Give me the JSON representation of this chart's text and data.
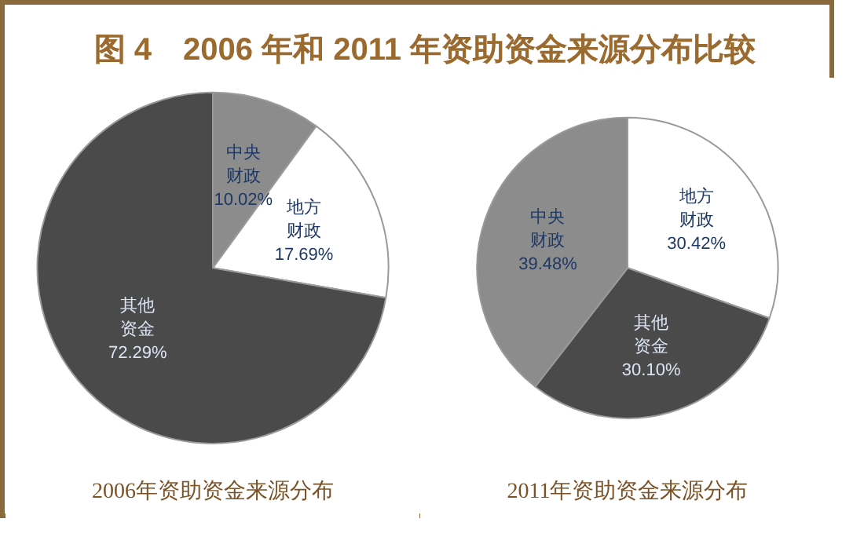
{
  "chart_data": [
    {
      "type": "pie",
      "title": "图 4　2006 年和 2011 年资助资金来源分布比较",
      "subtitle": "2006年资助资金来源分布",
      "categories": [
        "中央财政",
        "地方财政",
        "其他资金"
      ],
      "values": [
        10.02,
        17.69,
        72.29
      ],
      "colors": [
        "#8c8c8c",
        "#ffffff",
        "#4a4a4a"
      ],
      "value_labels": [
        "10.02%",
        "17.69%",
        "72.29%"
      ]
    },
    {
      "type": "pie",
      "subtitle": "2011年资助资金来源分布",
      "categories": [
        "地方财政",
        "其他资金",
        "中央财政"
      ],
      "values": [
        30.42,
        30.1,
        39.48
      ],
      "colors": [
        "#ffffff",
        "#4a4a4a",
        "#8c8c8c"
      ],
      "value_labels": [
        "30.42%",
        "30.10%",
        "39.48%"
      ]
    }
  ]
}
